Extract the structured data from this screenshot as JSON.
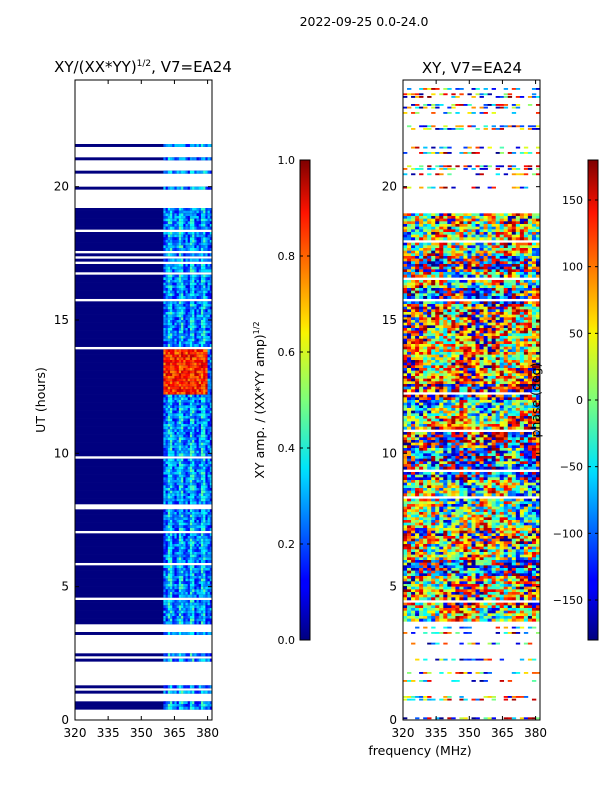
{
  "suptitle": "2022-09-25 0.0-24.0",
  "shared_xlabel": "frequency (MHz)",
  "chart_data": [
    {
      "type": "heatmap",
      "title_main": "XY/(XX*YY)",
      "title_sup": "1/2",
      "title_tail": ", V7=EA24",
      "xlabel": "",
      "ylabel": "UT (hours)",
      "xlim": [
        320,
        382
      ],
      "ylim": [
        0,
        24
      ],
      "xticks": [
        320,
        335,
        350,
        365,
        380
      ],
      "yticks": [
        0,
        5,
        10,
        15,
        20
      ],
      "colorbar": {
        "label_main": "XY amp. / (XX*YY amp)",
        "label_sup": "1/2",
        "range": [
          0.0,
          1.0
        ],
        "ticks": [
          "0.0",
          "0.2",
          "0.4",
          "0.6",
          "0.8",
          "1.0"
        ],
        "colormap": "jet"
      },
      "active_band_mhz": [
        360,
        382
      ],
      "high_value_hours": [
        12.2,
        13.9
      ],
      "colors": {
        "low": "#00007f",
        "mid": "#00c8ff",
        "high": "#ff4000"
      }
    },
    {
      "type": "heatmap",
      "title": "XY, V7=EA24",
      "xlabel": "frequency (MHz)",
      "ylabel": "",
      "xlim": [
        320,
        382
      ],
      "ylim": [
        0,
        24
      ],
      "xticks": [
        320,
        335,
        350,
        365,
        380
      ],
      "yticks": [
        0,
        5,
        10,
        15,
        20
      ],
      "colorbar": {
        "label": "phase (deg)",
        "range": [
          -180,
          180
        ],
        "ticks": [
          "−150",
          "−100",
          "−50",
          "0",
          "50",
          "100",
          "150"
        ],
        "colormap": "jet"
      },
      "dense_data_hours": [
        3.7,
        19.0
      ]
    }
  ]
}
